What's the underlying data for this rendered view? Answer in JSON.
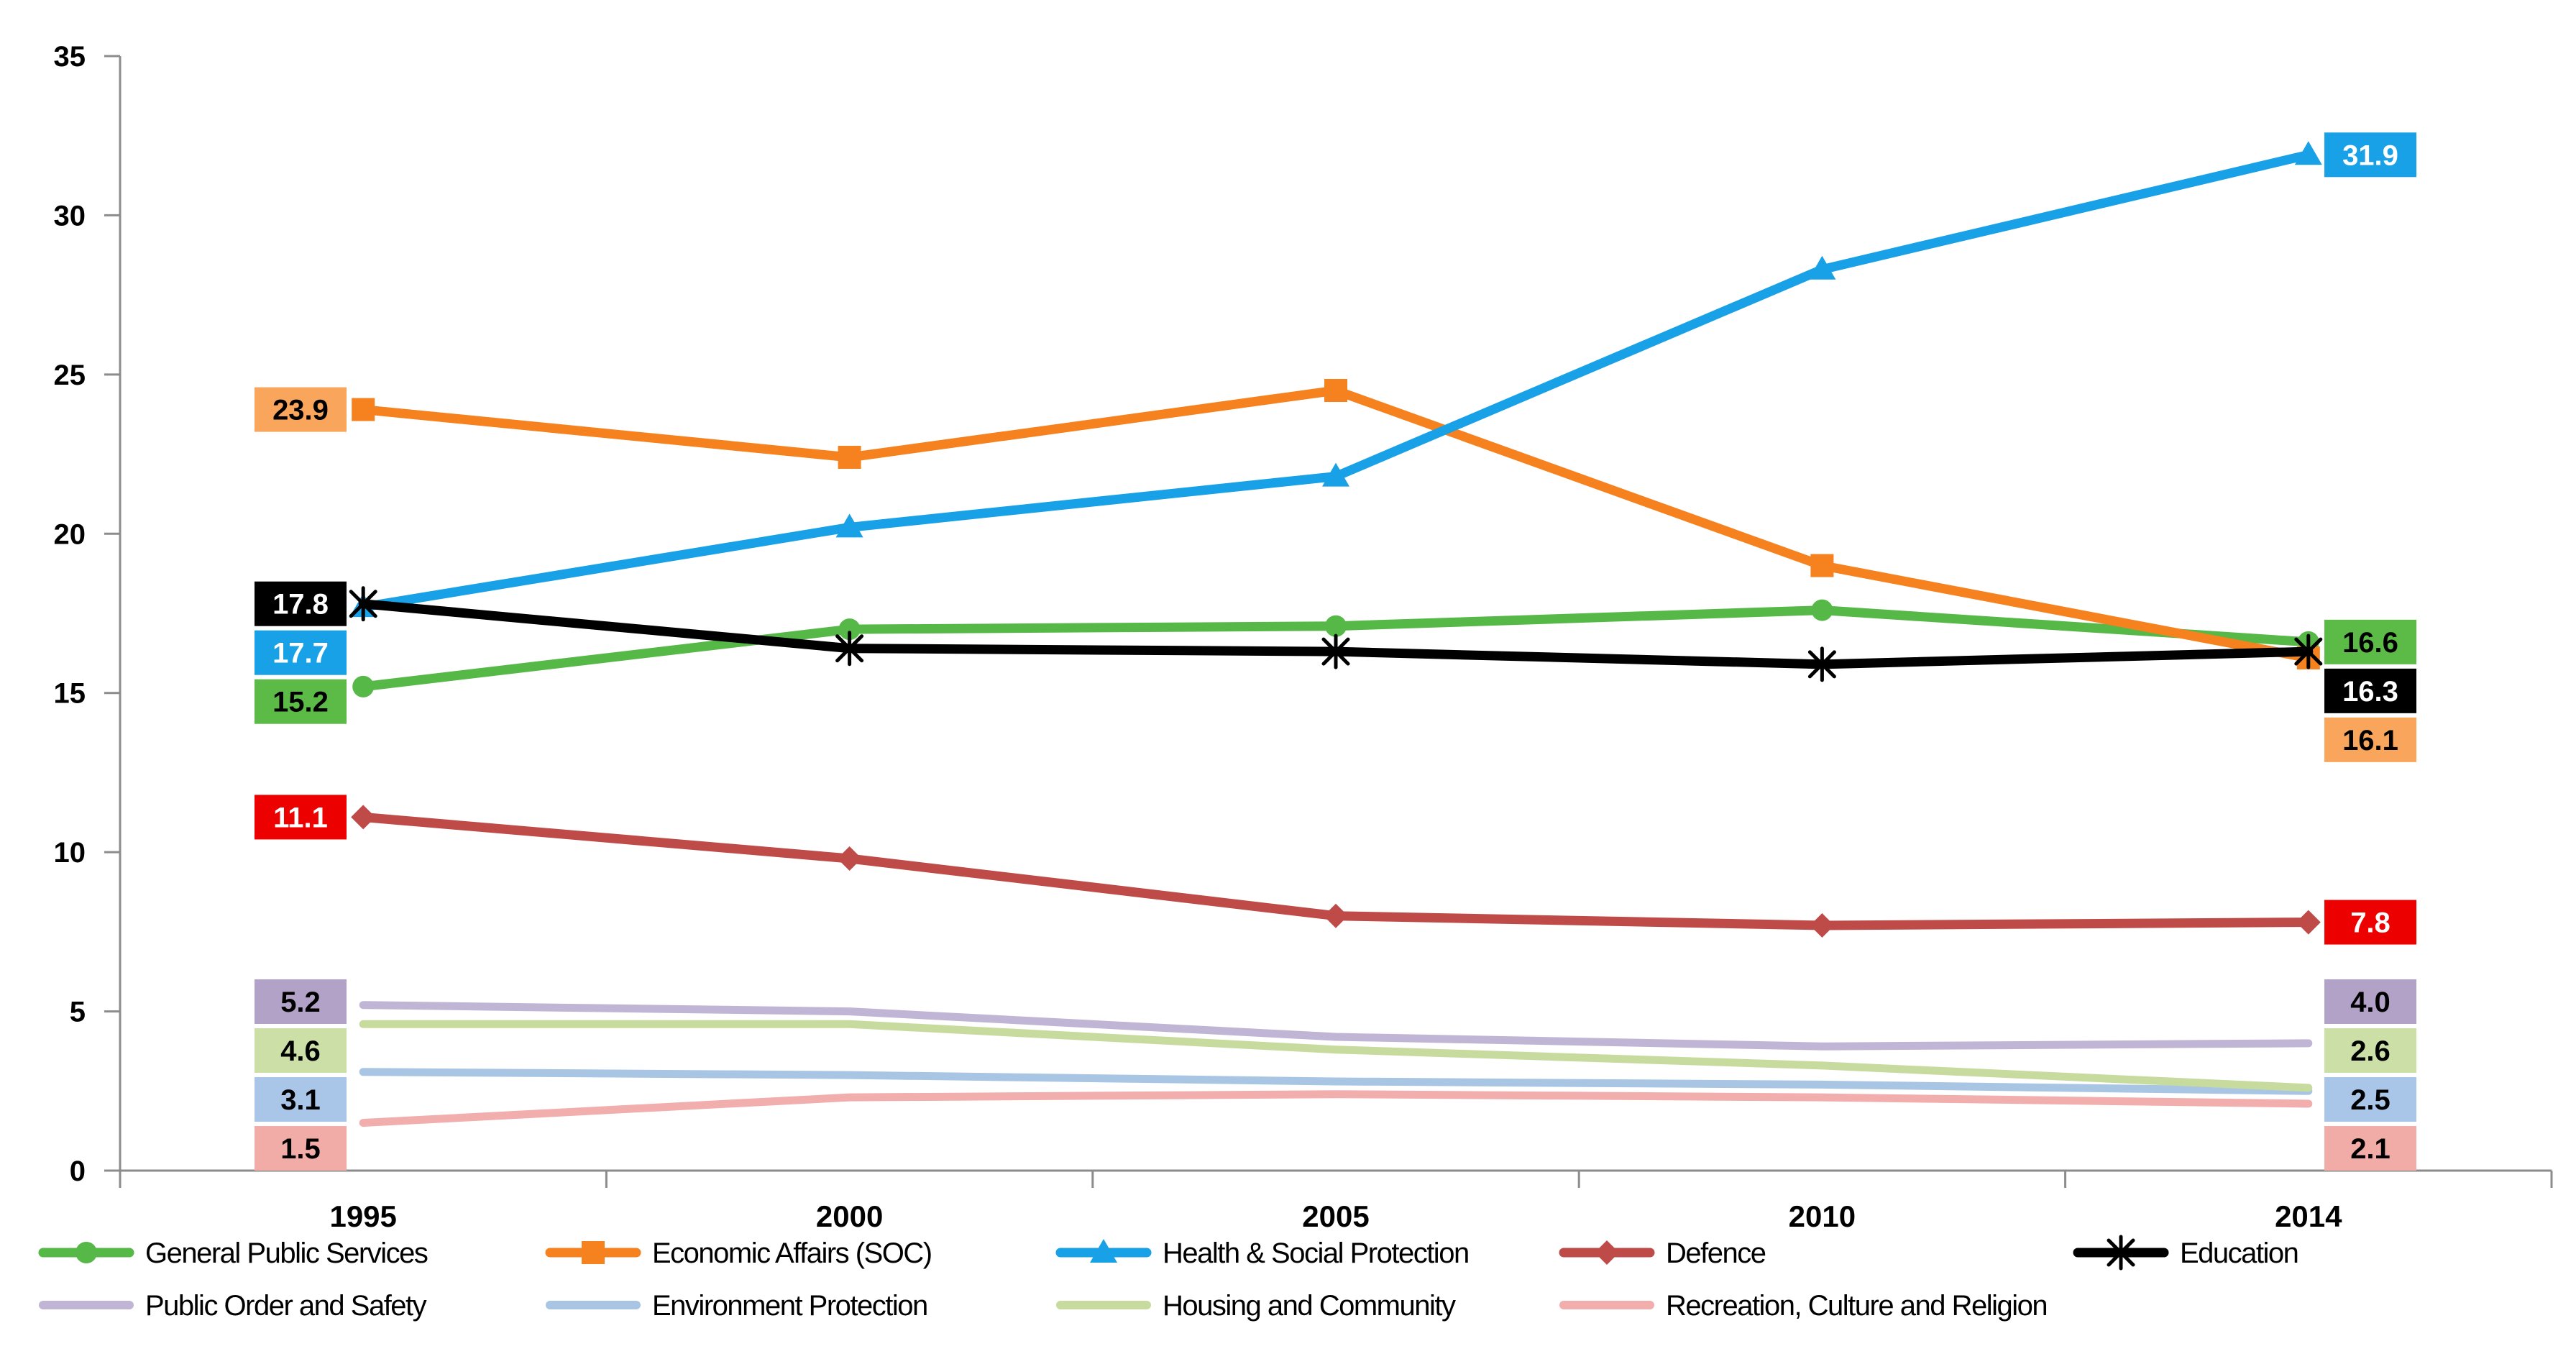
{
  "chart_data": {
    "type": "line",
    "title": "",
    "categories": [
      "1995",
      "2000",
      "2005",
      "2010",
      "2014"
    ],
    "xlabel": "",
    "ylabel": "",
    "y_axis": {
      "min": 0,
      "max": 35,
      "step": 5,
      "tick_labels": [
        "0",
        "5",
        "10",
        "15",
        "20",
        "25",
        "30",
        "35"
      ]
    },
    "grid": false,
    "legend_position": "bottom",
    "axis_color": "#8c8c8c",
    "series": [
      {
        "name": "General Public Services",
        "color": "#56B947",
        "marker": "circle",
        "label_bg": "#5CBA47",
        "label_text_color": "#000000",
        "values": [
          15.2,
          17.0,
          17.1,
          17.6,
          16.6
        ],
        "label_start": "15.2",
        "label_end": "16.6"
      },
      {
        "name": "Economic Affairs (SOC)",
        "color": "#F5821F",
        "marker": "square",
        "label_bg": "#F9A55B",
        "label_text_color": "#000000",
        "values": [
          23.9,
          22.4,
          24.5,
          19.0,
          16.1
        ],
        "label_start": "23.9",
        "label_end": "16.1"
      },
      {
        "name": "Health & Social Protection",
        "color": "#18A1E6",
        "marker": "triangle",
        "label_bg": "#18A1E6",
        "label_text_color": "#FFFFFF",
        "values": [
          17.7,
          20.2,
          21.8,
          28.3,
          31.9
        ],
        "label_start": "17.7",
        "label_end": "31.9"
      },
      {
        "name": "Defence",
        "color": "#BE4B48",
        "marker": "diamond",
        "label_bg": "#EC0000",
        "label_text_color": "#FFFFFF",
        "values": [
          11.1,
          9.8,
          8.0,
          7.7,
          7.8
        ],
        "label_start": "11.1",
        "label_end": "7.8"
      },
      {
        "name": "Education",
        "color": "#000000",
        "marker": "asterisk",
        "label_bg": "#000000",
        "label_text_color": "#FFFFFF",
        "values": [
          17.8,
          16.4,
          16.3,
          15.9,
          16.3
        ],
        "label_start": "17.8",
        "label_end": "16.3"
      },
      {
        "name": "Public Order and Safety",
        "color": "#C1B5D6",
        "marker": "none",
        "label_bg": "#B3A2C7",
        "label_text_color": "#000000",
        "values": [
          5.2,
          5.0,
          4.2,
          3.9,
          4.0
        ],
        "label_start": "5.2",
        "label_end": "4.0"
      },
      {
        "name": "Environment Protection",
        "color": "#A8C6E4",
        "marker": "none",
        "label_bg": "#A9C6E8",
        "label_text_color": "#000000",
        "values": [
          3.1,
          3.0,
          2.8,
          2.7,
          2.5
        ],
        "label_start": "3.1",
        "label_end": "2.5"
      },
      {
        "name": "Housing and Community",
        "color": "#C8DB9E",
        "marker": "none",
        "label_bg": "#CCDFA6",
        "label_text_color": "#000000",
        "values": [
          4.6,
          4.6,
          3.8,
          3.3,
          2.6
        ],
        "label_start": "4.6",
        "label_end": "2.6"
      },
      {
        "name": "Recreation, Culture and Religion",
        "color": "#F2ADAD",
        "marker": "none",
        "label_bg": "#F2ACA8",
        "label_text_color": "#000000",
        "values": [
          1.5,
          2.3,
          2.4,
          2.3,
          2.1
        ],
        "label_start": "1.5",
        "label_end": "2.1"
      }
    ]
  }
}
